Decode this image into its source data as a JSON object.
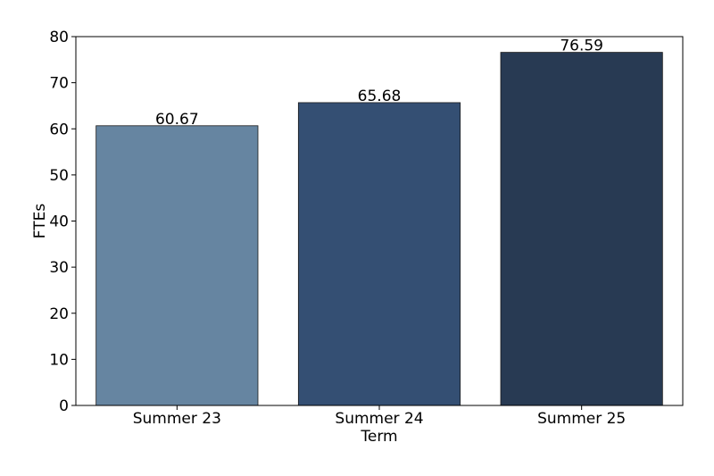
{
  "chart_data": {
    "type": "bar",
    "title": "",
    "xlabel": "Term",
    "ylabel": "FTEs",
    "categories": [
      "Summer 23",
      "Summer 24",
      "Summer 25"
    ],
    "values": [
      60.67,
      65.68,
      76.59
    ],
    "value_labels": [
      "60.67",
      "65.68",
      "76.59"
    ],
    "colors": [
      "#6685a1",
      "#344f73",
      "#283a53"
    ],
    "ylim": [
      0,
      80
    ],
    "yticks": [
      0,
      10,
      20,
      30,
      40,
      50,
      60,
      70,
      80
    ],
    "grid": false,
    "legend": "none"
  }
}
